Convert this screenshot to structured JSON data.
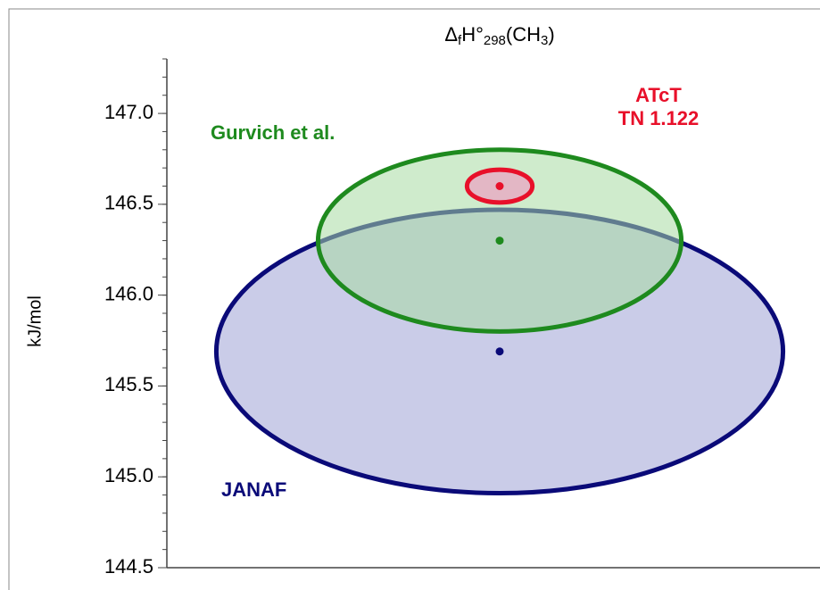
{
  "chart_data": {
    "type": "ellipse",
    "title_parts": [
      "Δ",
      "f",
      "H°",
      "298",
      "(CH",
      "3",
      ")"
    ],
    "ylabel": "kJ/mol",
    "ylim": [
      144.5,
      147.3
    ],
    "yticks": [
      {
        "value": 144.5,
        "label": "144.5"
      },
      {
        "value": 145,
        "label": "145.0"
      },
      {
        "value": 145.5,
        "label": "145.5"
      },
      {
        "value": 146,
        "label": "146.0"
      },
      {
        "value": 146.5,
        "label": "146.5"
      },
      {
        "value": 147,
        "label": "147.0"
      }
    ],
    "minor_tick_step": 0.1,
    "series": [
      {
        "name_lines": [
          "JANAF"
        ],
        "color": "#0a0a78",
        "fill": "#9ea2d6",
        "value": 145.69,
        "error": 0.78
      },
      {
        "name_lines": [
          "Gurvich et al."
        ],
        "color": "#1e8a1e",
        "fill": "#a8dba2",
        "value": 146.3,
        "error": 0.5
      },
      {
        "name_lines": [
          "ATcT",
          "TN 1.122"
        ],
        "color": "#e8102a",
        "fill": "#f48cc0",
        "value": 146.6,
        "error": 0.09
      }
    ]
  }
}
